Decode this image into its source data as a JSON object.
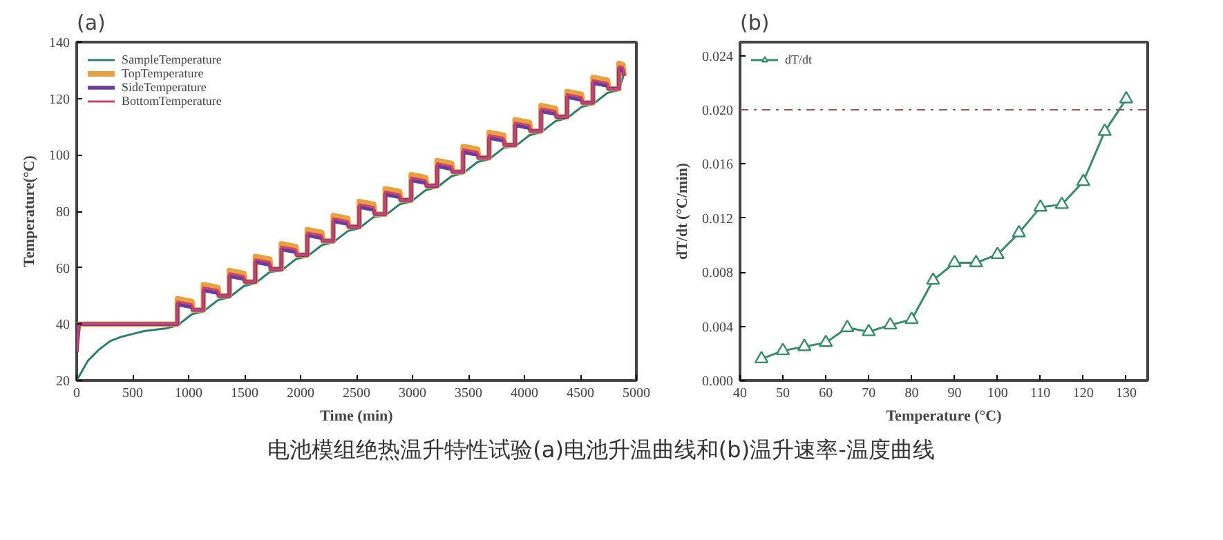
{
  "chart_data": [
    {
      "type": "line",
      "title": "(a)",
      "xlabel": "Time (min)",
      "ylabel": "Temperature(°C)",
      "xlim": [
        0,
        5000
      ],
      "xticks": [
        0,
        500,
        1000,
        1500,
        2000,
        2500,
        3000,
        3500,
        4000,
        4500,
        5000
      ],
      "ylim": [
        20,
        140
      ],
      "yticks": [
        20,
        40,
        60,
        80,
        100,
        120,
        140
      ],
      "grid": false,
      "legend": "top left",
      "marker": "none",
      "line_style": "solid",
      "annotations": [
        "电池模组绝热温升特性试验(a)电池升温曲线和(b)温升速率-温度曲线"
      ],
      "series": [
        {
          "name": "SampleTemperature",
          "color": "#2e7d6e",
          "x": [
            0,
            100,
            200,
            300,
            400,
            500,
            600,
            700,
            800,
            900,
            1030,
            1132,
            1262,
            1364,
            1494,
            1596,
            1726,
            1828,
            1958,
            2060,
            2190,
            2292,
            2422,
            2524,
            2654,
            2756,
            2886,
            2988,
            3118,
            3220,
            3350,
            3452,
            3582,
            3684,
            3814,
            3916,
            4046,
            4148,
            4278,
            4380,
            4510,
            4612,
            4742,
            4844,
            4900
          ],
          "values": [
            20,
            27,
            31,
            34,
            35.5,
            36.5,
            37.5,
            38,
            38.5,
            39.5,
            43.5,
            44.5,
            48.5,
            49.5,
            53.5,
            54.5,
            58.5,
            59,
            63,
            64,
            68,
            69,
            73,
            74,
            78,
            78.5,
            82.5,
            83.5,
            87.5,
            88.5,
            92.5,
            93.5,
            97.5,
            98.5,
            102.5,
            103,
            107,
            108,
            112,
            113,
            117,
            118,
            122,
            123,
            130
          ]
        },
        {
          "name": "TopTemperature",
          "color": "#e8a040",
          "x": [
            0,
            20,
            900,
            900,
            1030,
            1040,
            1132,
            1132,
            1262,
            1272,
            1364,
            1364,
            1494,
            1504,
            1596,
            1596,
            1726,
            1736,
            1828,
            1828,
            1958,
            1968,
            2060,
            2060,
            2190,
            2200,
            2292,
            2292,
            2422,
            2432,
            2524,
            2524,
            2654,
            2664,
            2756,
            2756,
            2886,
            2896,
            2988,
            2988,
            3118,
            3128,
            3220,
            3220,
            3350,
            3360,
            3452,
            3452,
            3582,
            3592,
            3684,
            3684,
            3814,
            3824,
            3916,
            3916,
            4046,
            4056,
            4148,
            4148,
            4278,
            4288,
            4380,
            4380,
            4510,
            4520,
            4612,
            4612,
            4742,
            4752,
            4844,
            4844,
            4880,
            4890
          ],
          "values": [
            35,
            40,
            40,
            49,
            48,
            45,
            45,
            54,
            53,
            50,
            50,
            59,
            58,
            55,
            55,
            64,
            63,
            59.5,
            59.5,
            68.5,
            67.5,
            64.5,
            64.5,
            73.5,
            72.5,
            69.5,
            69.5,
            78.5,
            77.5,
            74.5,
            74.5,
            83.5,
            82.5,
            79,
            79,
            88,
            87,
            84,
            84,
            93,
            92,
            89,
            89,
            98,
            97,
            94,
            94,
            103,
            102,
            99,
            99,
            108,
            107,
            103.5,
            103.5,
            112.5,
            111.5,
            108.5,
            108.5,
            117.5,
            116.5,
            113.5,
            113.5,
            122.5,
            121.5,
            118.5,
            118.5,
            127.5,
            126.5,
            123.5,
            123.5,
            132.5,
            132,
            128
          ]
        },
        {
          "name": "SideTemperature",
          "color": "#6a3d9a",
          "x": [
            0,
            20,
            900,
            900,
            1030,
            1040,
            1132,
            1132,
            1262,
            1272,
            1364,
            1364,
            1494,
            1504,
            1596,
            1596,
            1726,
            1736,
            1828,
            1828,
            1958,
            1968,
            2060,
            2060,
            2190,
            2200,
            2292,
            2292,
            2422,
            2432,
            2524,
            2524,
            2654,
            2664,
            2756,
            2756,
            2886,
            2896,
            2988,
            2988,
            3118,
            3128,
            3220,
            3220,
            3350,
            3360,
            3452,
            3452,
            3582,
            3592,
            3684,
            3684,
            3814,
            3824,
            3916,
            3916,
            4046,
            4056,
            4148,
            4148,
            4278,
            4288,
            4380,
            4380,
            4510,
            4520,
            4612,
            4612,
            4742,
            4752,
            4844,
            4844,
            4880,
            4890
          ],
          "values": [
            30,
            40,
            40,
            47,
            46,
            45,
            45,
            52,
            51,
            50,
            50,
            57,
            56,
            55,
            55,
            62,
            61,
            59.5,
            59.5,
            66.5,
            65.5,
            64.5,
            64.5,
            71.5,
            70.5,
            69.5,
            69.5,
            76.5,
            75.5,
            74.5,
            74.5,
            81.5,
            80.5,
            79,
            79,
            86,
            85,
            84,
            84,
            91,
            90,
            89,
            89,
            96,
            95,
            94,
            94,
            101,
            100,
            99,
            99,
            106,
            105,
            103.5,
            103.5,
            110.5,
            109.5,
            108.5,
            108.5,
            115.5,
            114.5,
            113.5,
            113.5,
            120.5,
            119.5,
            118.5,
            118.5,
            125.5,
            124.5,
            123.5,
            123.5,
            130.5,
            130,
            128
          ]
        },
        {
          "name": "BottomTemperature",
          "color": "#d0406a",
          "x": [
            0,
            20,
            900,
            900,
            1030,
            1040,
            1132,
            1132,
            1262,
            1272,
            1364,
            1364,
            1494,
            1504,
            1596,
            1596,
            1726,
            1736,
            1828,
            1828,
            1958,
            1968,
            2060,
            2060,
            2190,
            2200,
            2292,
            2292,
            2422,
            2432,
            2524,
            2524,
            2654,
            2664,
            2756,
            2756,
            2886,
            2896,
            2988,
            2988,
            3118,
            3128,
            3220,
            3220,
            3350,
            3360,
            3452,
            3452,
            3582,
            3592,
            3684,
            3684,
            3814,
            3824,
            3916,
            3916,
            4046,
            4056,
            4148,
            4148,
            4278,
            4288,
            4380,
            4380,
            4510,
            4520,
            4612,
            4612,
            4742,
            4752,
            4844,
            4844,
            4880,
            4890
          ],
          "values": [
            30,
            40,
            40,
            48,
            47,
            45,
            45,
            53,
            52,
            50,
            50,
            58,
            57,
            55,
            55,
            63,
            62,
            59.5,
            59.5,
            67.5,
            66.5,
            64.5,
            64.5,
            72.5,
            71.5,
            69.5,
            69.5,
            77.5,
            76.5,
            74.5,
            74.5,
            82.5,
            81.5,
            79,
            79,
            87,
            86,
            84,
            84,
            92,
            91,
            89,
            89,
            97,
            96,
            94,
            94,
            102,
            101,
            99,
            99,
            107,
            106,
            103.5,
            103.5,
            111.5,
            110.5,
            108.5,
            108.5,
            116.5,
            115.5,
            113.5,
            113.5,
            121.5,
            120.5,
            118.5,
            118.5,
            126.5,
            125.5,
            123.5,
            123.5,
            131.5,
            131,
            128
          ]
        }
      ]
    },
    {
      "type": "line",
      "title": "(b)",
      "xlabel": "Temperature (°C)",
      "ylabel": "dT/dt (°C/min)",
      "xlim": [
        40,
        135
      ],
      "xticks": [
        40,
        50,
        60,
        70,
        80,
        90,
        100,
        110,
        120,
        130
      ],
      "ylim": [
        0,
        0.025
      ],
      "yticks": [
        {
          "value": 0,
          "label": "0.000"
        },
        {
          "value": 0.004,
          "label": "0.004"
        },
        {
          "value": 0.008,
          "label": "0.008"
        },
        {
          "value": 0.012,
          "label": "0.012"
        },
        {
          "value": 0.016,
          "label": "0.016"
        },
        {
          "value": 0.02,
          "label": "0.020"
        },
        {
          "value": 0.024,
          "label": "0.024"
        }
      ],
      "grid": false,
      "legend": "top left",
      "marker": "triangle",
      "line_style": "solid",
      "ref_lines": [
        {
          "axis": "y",
          "value": 0.02,
          "label": null,
          "color": "#8a5a5a",
          "line_style": "dashdot"
        }
      ],
      "series": [
        {
          "name": "dT/dt",
          "color": "#3a8a6e",
          "x": [
            45,
            50,
            55,
            60,
            65,
            70,
            75,
            80,
            85,
            90,
            95,
            100,
            105,
            110,
            115,
            120,
            125,
            130
          ],
          "values": [
            0.0016,
            0.0022,
            0.0025,
            0.0028,
            0.0039,
            0.0036,
            0.0041,
            0.0045,
            0.0074,
            0.0087,
            0.0087,
            0.0093,
            0.0109,
            0.0128,
            0.013,
            0.0147,
            0.0184,
            0.0208
          ]
        }
      ]
    }
  ]
}
